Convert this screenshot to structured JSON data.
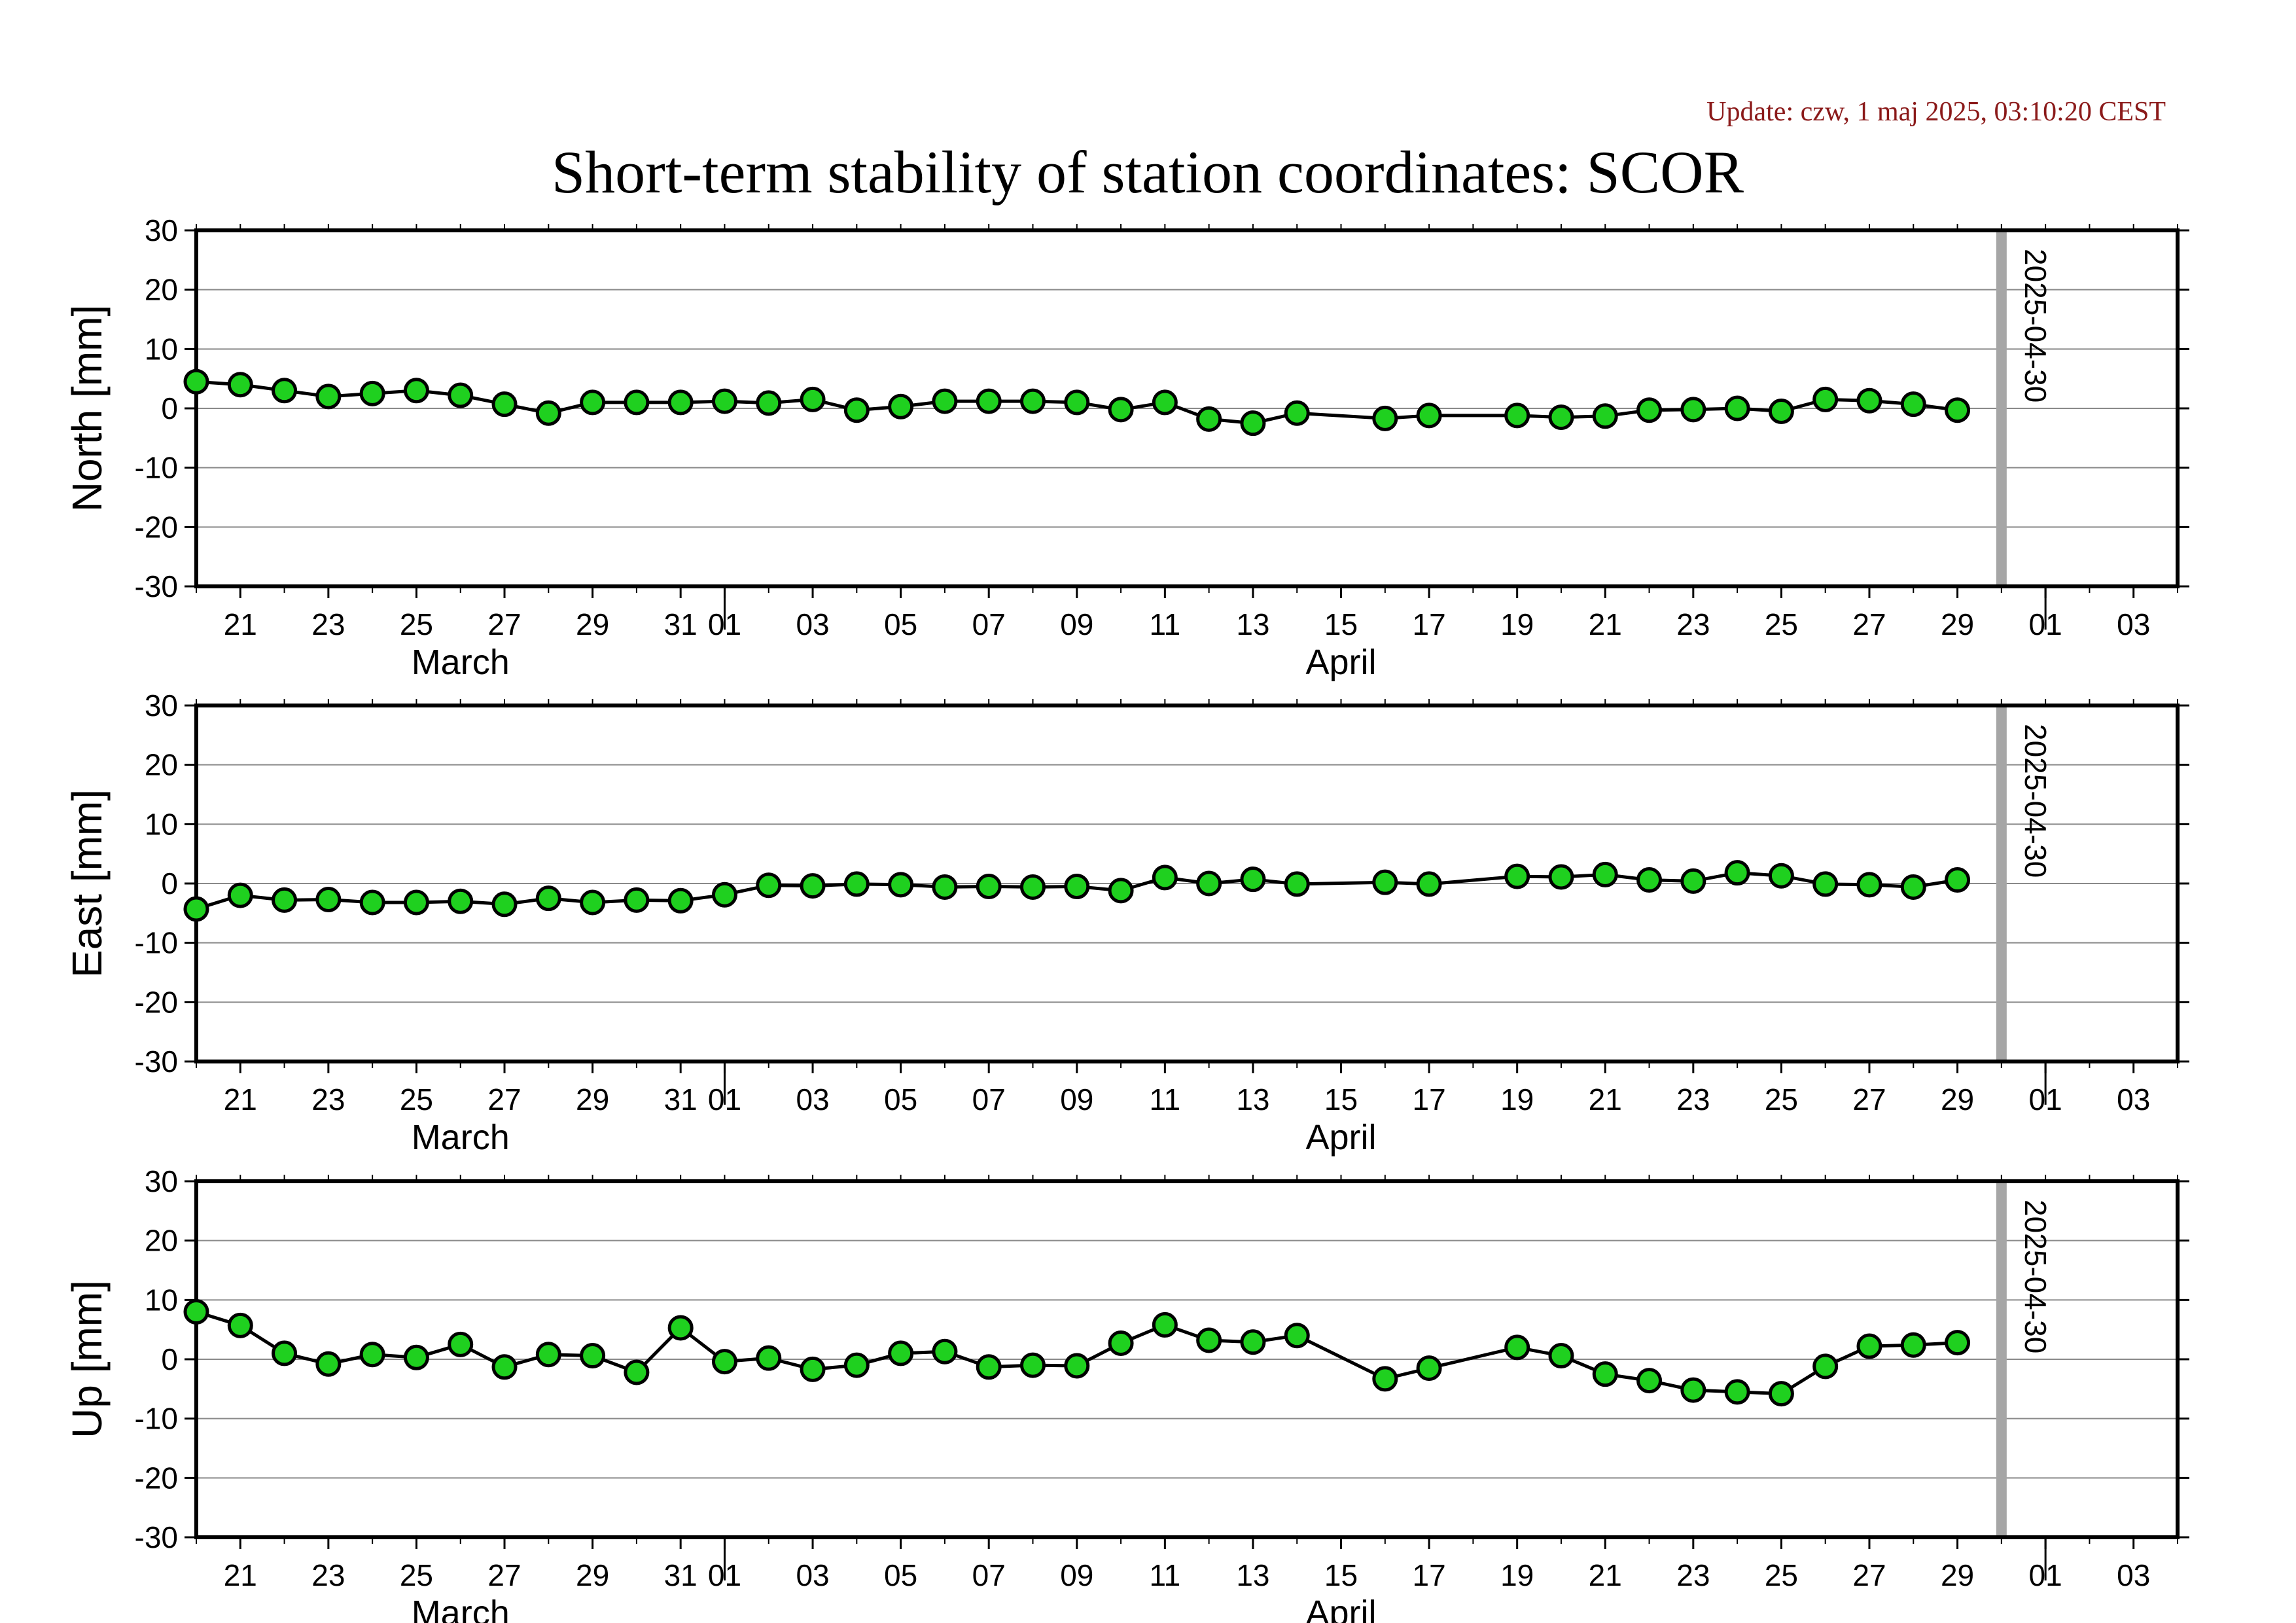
{
  "update_text": "Update: czw, 1 maj 2025, 03:10:20 CEST",
  "chart_data": {
    "type": "line",
    "title": "Short-term stability of station coordinates: SCOR",
    "x_range": [
      "2025-03-20",
      "2025-05-04"
    ],
    "x_tick_labels": [
      "21",
      "23",
      "25",
      "27",
      "29",
      "31",
      "01",
      "03",
      "05",
      "07",
      "09",
      "11",
      "13",
      "15",
      "17",
      "19",
      "21",
      "23",
      "25",
      "27",
      "29",
      "01",
      "03"
    ],
    "x_tick_dates": [
      "2025-03-21",
      "2025-03-23",
      "2025-03-25",
      "2025-03-27",
      "2025-03-29",
      "2025-03-31",
      "2025-04-01",
      "2025-04-03",
      "2025-04-05",
      "2025-04-07",
      "2025-04-09",
      "2025-04-11",
      "2025-04-13",
      "2025-04-15",
      "2025-04-17",
      "2025-04-19",
      "2025-04-21",
      "2025-04-23",
      "2025-04-25",
      "2025-04-27",
      "2025-04-29",
      "2025-05-01",
      "2025-05-03"
    ],
    "month_labels": [
      {
        "label": "March",
        "date": "2025-03-26"
      },
      {
        "label": "April",
        "date": "2025-04-15"
      }
    ],
    "month_boundaries": [
      "2025-04-01",
      "2025-05-01"
    ],
    "marker": {
      "label": "2025-04-30",
      "date": "2025-04-30",
      "color": "#a6a6a6"
    },
    "point_color": "#1fd01f",
    "line_color": "#000000",
    "grid": true,
    "panels": [
      {
        "ylabel": "North [mm]",
        "ylim": [
          -30,
          30
        ],
        "y_ticks": [
          30,
          20,
          10,
          0,
          -10,
          -20,
          -30
        ],
        "points": [
          [
            "2025-03-20",
            4.5
          ],
          [
            "2025-03-21",
            4.0
          ],
          [
            "2025-03-22",
            3.0
          ],
          [
            "2025-03-23",
            2.0
          ],
          [
            "2025-03-24",
            2.5
          ],
          [
            "2025-03-25",
            3.0
          ],
          [
            "2025-03-26",
            2.2
          ],
          [
            "2025-03-27",
            0.7
          ],
          [
            "2025-03-28",
            -0.8
          ],
          [
            "2025-03-29",
            1.0
          ],
          [
            "2025-03-30",
            1.0
          ],
          [
            "2025-03-31",
            1.0
          ],
          [
            "2025-04-01",
            1.2
          ],
          [
            "2025-04-02",
            0.9
          ],
          [
            "2025-04-03",
            1.5
          ],
          [
            "2025-04-04",
            -0.3
          ],
          [
            "2025-04-05",
            0.3
          ],
          [
            "2025-04-06",
            1.2
          ],
          [
            "2025-04-07",
            1.2
          ],
          [
            "2025-04-08",
            1.2
          ],
          [
            "2025-04-09",
            1.0
          ],
          [
            "2025-04-10",
            -0.2
          ],
          [
            "2025-04-11",
            1.0
          ],
          [
            "2025-04-12",
            -1.8
          ],
          [
            "2025-04-13",
            -2.5
          ],
          [
            "2025-04-14",
            -0.8
          ],
          [
            "2025-04-16",
            -1.7
          ],
          [
            "2025-04-17",
            -1.2
          ],
          [
            "2025-04-19",
            -1.2
          ],
          [
            "2025-04-20",
            -1.5
          ],
          [
            "2025-04-21",
            -1.3
          ],
          [
            "2025-04-22",
            -0.3
          ],
          [
            "2025-04-23",
            -0.2
          ],
          [
            "2025-04-24",
            0.0
          ],
          [
            "2025-04-25",
            -0.5
          ],
          [
            "2025-04-26",
            1.5
          ],
          [
            "2025-04-27",
            1.3
          ],
          [
            "2025-04-28",
            0.7
          ],
          [
            "2025-04-29",
            -0.3
          ]
        ]
      },
      {
        "ylabel": "East [mm]",
        "ylim": [
          -30,
          30
        ],
        "y_ticks": [
          30,
          20,
          10,
          0,
          -10,
          -20,
          -30
        ],
        "points": [
          [
            "2025-03-20",
            -4.3
          ],
          [
            "2025-03-21",
            -2.0
          ],
          [
            "2025-03-22",
            -2.8
          ],
          [
            "2025-03-23",
            -2.7
          ],
          [
            "2025-03-24",
            -3.2
          ],
          [
            "2025-03-25",
            -3.2
          ],
          [
            "2025-03-26",
            -3.0
          ],
          [
            "2025-03-27",
            -3.5
          ],
          [
            "2025-03-28",
            -2.5
          ],
          [
            "2025-03-29",
            -3.2
          ],
          [
            "2025-03-30",
            -2.8
          ],
          [
            "2025-03-31",
            -2.9
          ],
          [
            "2025-04-01",
            -1.9
          ],
          [
            "2025-04-02",
            -0.3
          ],
          [
            "2025-04-03",
            -0.4
          ],
          [
            "2025-04-04",
            -0.1
          ],
          [
            "2025-04-05",
            -0.2
          ],
          [
            "2025-04-06",
            -0.6
          ],
          [
            "2025-04-07",
            -0.5
          ],
          [
            "2025-04-08",
            -0.6
          ],
          [
            "2025-04-09",
            -0.5
          ],
          [
            "2025-04-10",
            -1.2
          ],
          [
            "2025-04-11",
            1.0
          ],
          [
            "2025-04-12",
            0.0
          ],
          [
            "2025-04-13",
            0.7
          ],
          [
            "2025-04-14",
            -0.1
          ],
          [
            "2025-04-16",
            0.2
          ],
          [
            "2025-04-17",
            -0.1
          ],
          [
            "2025-04-19",
            1.2
          ],
          [
            "2025-04-20",
            1.1
          ],
          [
            "2025-04-21",
            1.5
          ],
          [
            "2025-04-22",
            0.6
          ],
          [
            "2025-04-23",
            0.4
          ],
          [
            "2025-04-24",
            1.8
          ],
          [
            "2025-04-25",
            1.3
          ],
          [
            "2025-04-26",
            -0.1
          ],
          [
            "2025-04-27",
            -0.2
          ],
          [
            "2025-04-28",
            -0.6
          ],
          [
            "2025-04-29",
            0.6
          ]
        ]
      },
      {
        "ylabel": "Up [mm]",
        "ylim": [
          -30,
          30
        ],
        "y_ticks": [
          30,
          20,
          10,
          0,
          -10,
          -20,
          -30
        ],
        "points": [
          [
            "2025-03-20",
            8.0
          ],
          [
            "2025-03-21",
            5.7
          ],
          [
            "2025-03-22",
            1.0
          ],
          [
            "2025-03-23",
            -0.8
          ],
          [
            "2025-03-24",
            0.8
          ],
          [
            "2025-03-25",
            0.3
          ],
          [
            "2025-03-26",
            2.5
          ],
          [
            "2025-03-27",
            -1.3
          ],
          [
            "2025-03-28",
            0.8
          ],
          [
            "2025-03-29",
            0.6
          ],
          [
            "2025-03-30",
            -2.2
          ],
          [
            "2025-03-31",
            5.3
          ],
          [
            "2025-04-01",
            -0.4
          ],
          [
            "2025-04-02",
            0.2
          ],
          [
            "2025-04-03",
            -1.7
          ],
          [
            "2025-04-04",
            -1.0
          ],
          [
            "2025-04-05",
            1.0
          ],
          [
            "2025-04-06",
            1.3
          ],
          [
            "2025-04-07",
            -1.3
          ],
          [
            "2025-04-08",
            -1.0
          ],
          [
            "2025-04-09",
            -1.1
          ],
          [
            "2025-04-10",
            2.7
          ],
          [
            "2025-04-11",
            5.8
          ],
          [
            "2025-04-12",
            3.2
          ],
          [
            "2025-04-13",
            2.9
          ],
          [
            "2025-04-14",
            4.0
          ],
          [
            "2025-04-16",
            -3.3
          ],
          [
            "2025-04-17",
            -1.5
          ],
          [
            "2025-04-19",
            2.0
          ],
          [
            "2025-04-20",
            0.6
          ],
          [
            "2025-04-21",
            -2.5
          ],
          [
            "2025-04-22",
            -3.6
          ],
          [
            "2025-04-23",
            -5.2
          ],
          [
            "2025-04-24",
            -5.5
          ],
          [
            "2025-04-25",
            -5.8
          ],
          [
            "2025-04-26",
            -1.2
          ],
          [
            "2025-04-27",
            2.2
          ],
          [
            "2025-04-28",
            2.4
          ],
          [
            "2025-04-29",
            2.8
          ]
        ]
      }
    ]
  }
}
